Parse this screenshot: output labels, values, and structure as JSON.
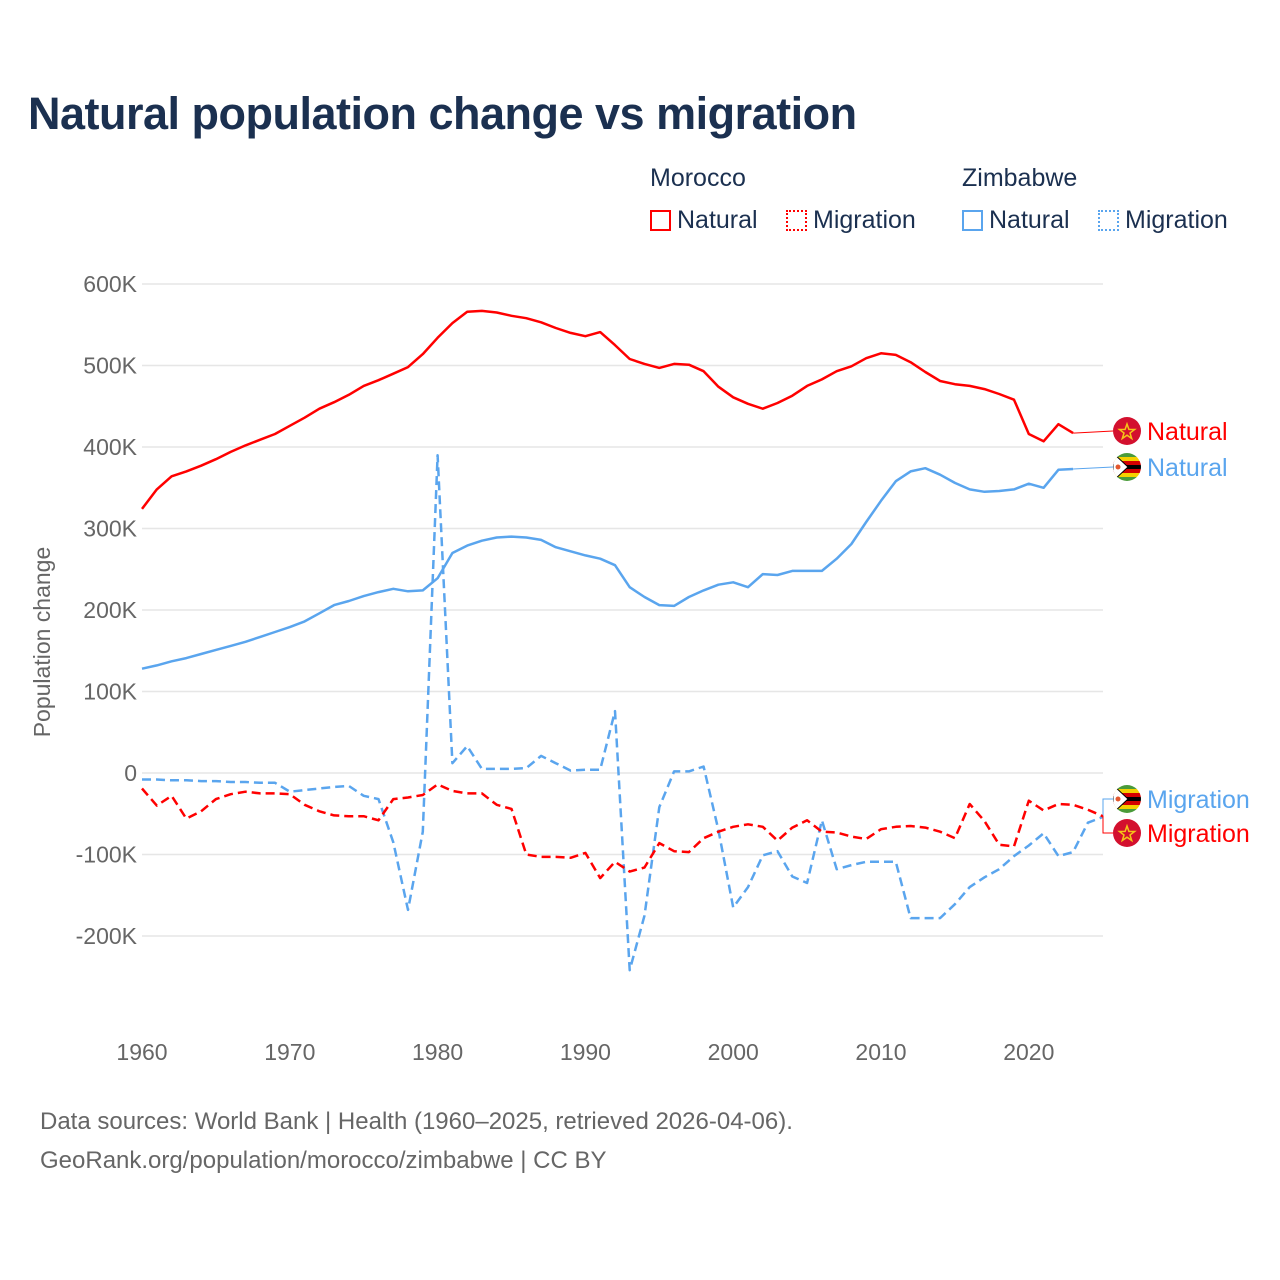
{
  "title": "Natural population change vs migration",
  "legend": {
    "groups": [
      {
        "name": "Morocco",
        "items": [
          {
            "label": "Natural",
            "style": "solid"
          },
          {
            "label": "Migration",
            "style": "dotted"
          }
        ],
        "color": "#ff0000"
      },
      {
        "name": "Zimbabwe",
        "items": [
          {
            "label": "Natural",
            "style": "solid"
          },
          {
            "label": "Migration",
            "style": "dotted"
          }
        ],
        "color": "#5aa5ee"
      }
    ]
  },
  "footer": {
    "line1": "Data sources: World Bank | Health (1960–2025, retrieved 2026-04-06).",
    "line2": "GeoRank.org/population/morocco/zimbabwe | CC BY"
  },
  "chart_data": {
    "type": "line",
    "title": "Natural population change vs migration",
    "xlabel": "",
    "ylabel": "Population change",
    "xlim": [
      1960,
      2025
    ],
    "ylim": [
      -300000,
      600000
    ],
    "grid": true,
    "legend_position": "top-right",
    "yticks": [
      600000,
      500000,
      400000,
      300000,
      200000,
      100000,
      0,
      -100000,
      -200000
    ],
    "ytick_labels": [
      "600K",
      "500K",
      "400K",
      "300K",
      "200K",
      "100K",
      "0",
      "-100K",
      "-200K"
    ],
    "xticks": [
      1960,
      1970,
      1980,
      1990,
      2000,
      2010,
      2020
    ],
    "xtick_labels": [
      "1960",
      "1970",
      "1980",
      "1990",
      "2000",
      "2010",
      "2020"
    ],
    "series": [
      {
        "name": "Morocco Natural",
        "end_label": "Natural",
        "country": "Morocco",
        "color": "#ff0000",
        "dash": false,
        "start": 1960,
        "values": [
          324,
          348,
          364,
          370,
          377,
          385,
          394,
          402,
          409,
          416,
          426,
          436,
          447,
          455,
          464,
          475,
          482,
          490,
          498,
          514,
          534,
          552,
          566,
          567,
          565,
          561,
          558,
          553,
          546,
          540,
          536,
          541,
          525,
          508,
          502,
          497,
          502,
          501,
          493,
          474,
          461,
          453,
          447,
          454,
          463,
          475,
          483,
          493,
          499,
          509,
          515,
          513,
          504,
          492,
          481,
          477,
          475,
          471,
          465,
          458,
          416,
          407,
          428,
          417
        ]
      },
      {
        "name": "Zimbabwe Natural",
        "end_label": "Natural",
        "country": "Zimbabwe",
        "color": "#5aa5ee",
        "dash": false,
        "start": 1960,
        "values": [
          128,
          132,
          137,
          141,
          146,
          151,
          156,
          161,
          167,
          173,
          179,
          186,
          196,
          206,
          211,
          217,
          222,
          226,
          223,
          224,
          239,
          270,
          279,
          285,
          289,
          290,
          289,
          286,
          277,
          272,
          267,
          263,
          255,
          228,
          216,
          206,
          205,
          216,
          224,
          231,
          234,
          228,
          244,
          243,
          248,
          248,
          248,
          263,
          281,
          308,
          334,
          358,
          370,
          374,
          366,
          356,
          348,
          345,
          346,
          348,
          355,
          350,
          372,
          373
        ]
      },
      {
        "name": "Zimbabwe Migration",
        "end_label": "Migration",
        "country": "Zimbabwe",
        "color": "#5aa5ee",
        "dash": true,
        "start": 1960,
        "values": [
          -8,
          -8,
          -9,
          -9,
          -10,
          -10,
          -11,
          -11,
          -12,
          -12,
          -23,
          -21,
          -19,
          -17,
          -16,
          -28,
          -32,
          -85,
          -168,
          -72,
          390,
          12,
          33,
          5,
          5,
          5,
          6,
          21,
          12,
          3,
          4,
          4,
          76,
          -242,
          -175,
          -42,
          2,
          2,
          8,
          -70,
          -165,
          -140,
          -101,
          -96,
          -127,
          -135,
          -58,
          -118,
          -113,
          -109,
          -109,
          -109,
          -178,
          -178,
          -178,
          -161,
          -140,
          -128,
          -118,
          -102,
          -89,
          -74,
          -102,
          -97,
          -61,
          -54
        ]
      },
      {
        "name": "Morocco Migration",
        "end_label": "Migration",
        "country": "Morocco",
        "color": "#ff0000",
        "dash": true,
        "start": 1960,
        "values": [
          -19,
          -40,
          -28,
          -56,
          -47,
          -32,
          -26,
          -23,
          -25,
          -25,
          -26,
          -39,
          -47,
          -52,
          -53,
          -53,
          -58,
          -32,
          -30,
          -27,
          -14,
          -22,
          -25,
          -25,
          -39,
          -44,
          -100,
          -103,
          -103,
          -104,
          -98,
          -129,
          -109,
          -121,
          -116,
          -86,
          -96,
          -97,
          -80,
          -72,
          -66,
          -63,
          -66,
          -83,
          -67,
          -58,
          -72,
          -73,
          -78,
          -81,
          -69,
          -66,
          -65,
          -67,
          -72,
          -80,
          -38,
          -59,
          -88,
          -90,
          -34,
          -46,
          -38,
          -39,
          -45,
          -53
        ]
      }
    ],
    "value_units": "thousands"
  }
}
